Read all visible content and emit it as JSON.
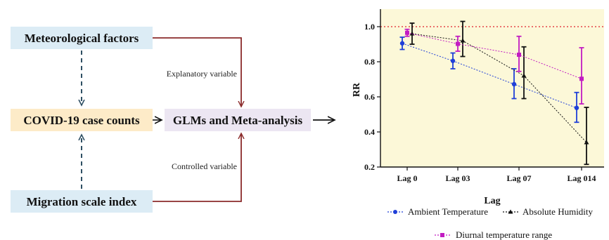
{
  "diagram": {
    "boxes": {
      "meteorological": "Meteorological factors",
      "covid": "COVID-19 case counts",
      "migration": "Migration scale index",
      "glm": "GLMs and Meta-analysis"
    },
    "labels": {
      "explanatory": "Explanatory variable",
      "controlled": "Controlled variable"
    },
    "colors": {
      "box_blue": "#dcecf5",
      "box_orange": "#fdebc8",
      "box_lavender": "#ece6f2",
      "arrow_red": "#8b2b2b",
      "arrow_dash": "#2e4f63"
    }
  },
  "chart_data": {
    "type": "scatter",
    "xlabel": "Lag",
    "ylabel": "RR",
    "categories": [
      "Lag 0",
      "Lag 03",
      "Lag 07",
      "Lag 014"
    ],
    "ylim": [
      0.2,
      1.1
    ],
    "yticks": [
      "0.2",
      "0.4",
      "0.6",
      "0.8",
      "1.0"
    ],
    "reference_line": 1.0,
    "background": "#fcf8d8",
    "legend_position": "bottom",
    "series": [
      {
        "name": "Ambient Temperature",
        "color": "#1f3fd8",
        "marker": "circle",
        "values": [
          0.905,
          0.805,
          0.672,
          0.537
        ],
        "lower": [
          0.87,
          0.76,
          0.59,
          0.455
        ],
        "upper": [
          0.94,
          0.85,
          0.76,
          0.625
        ]
      },
      {
        "name": "Absolute Humidity",
        "color": "#111111",
        "marker": "triangle",
        "values": [
          0.96,
          0.92,
          0.72,
          0.34
        ],
        "lower": [
          0.9,
          0.83,
          0.59,
          0.215
        ],
        "upper": [
          1.02,
          1.03,
          0.885,
          0.54
        ]
      },
      {
        "name": "Diurnal temperature range",
        "color": "#c21cc2",
        "marker": "square",
        "values": [
          0.965,
          0.902,
          0.84,
          0.703
        ],
        "lower": [
          0.945,
          0.86,
          0.745,
          0.56
        ],
        "upper": [
          0.985,
          0.945,
          0.945,
          0.88
        ]
      }
    ]
  }
}
